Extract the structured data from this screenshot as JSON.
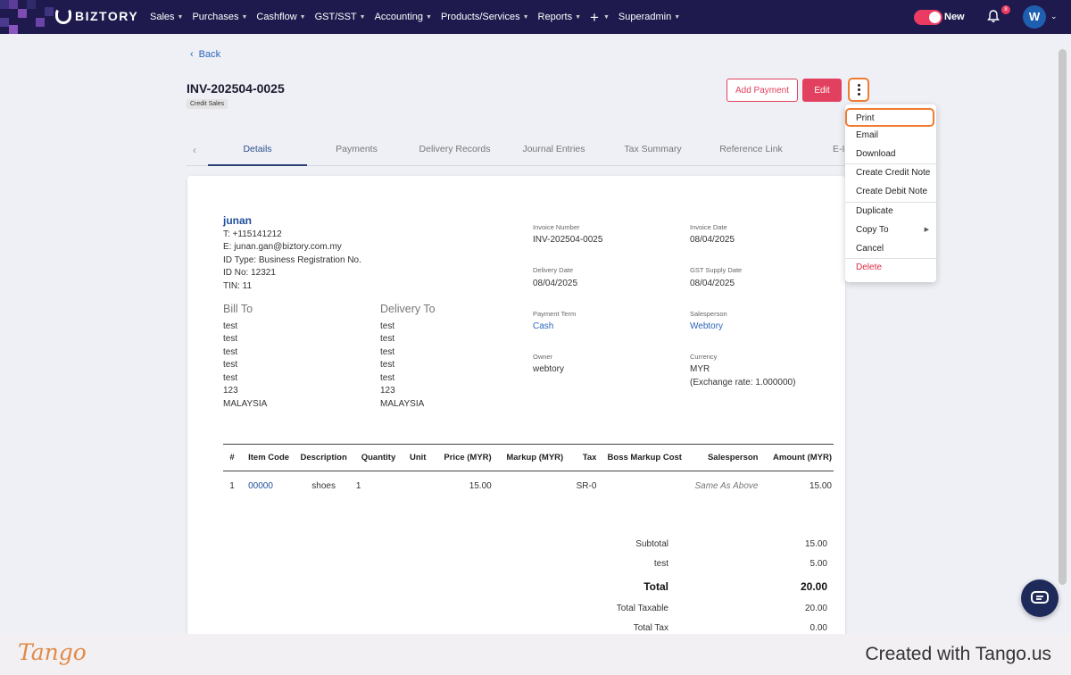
{
  "nav": {
    "logo_text": "BIZTORY",
    "menu": [
      "Sales",
      "Purchases",
      "Cashflow",
      "GST/SST",
      "Accounting",
      "Products/Services",
      "Reports"
    ],
    "plus_label": "+",
    "admin": "Superadmin",
    "toggle_label": "New",
    "notification_count": "8",
    "avatar_initial": "W"
  },
  "page": {
    "back_label": "Back",
    "title": "INV-202504-0025",
    "badge": "Credit Sales",
    "add_payment": "Add Payment",
    "edit": "Edit"
  },
  "tabs": [
    "Details",
    "Payments",
    "Delivery Records",
    "Journal Entries",
    "Tax Summary",
    "Reference Link",
    "E-In"
  ],
  "customer": {
    "name": "junan",
    "lines": [
      "T: +115141212",
      "E: junan.gan@biztory.com.my",
      "ID Type: Business Registration No.",
      "ID No: 12321",
      "TIN: 11"
    ]
  },
  "bill_to": {
    "heading": "Bill To",
    "lines": [
      "test",
      "test",
      "test",
      "test",
      "test",
      "123",
      "MALAYSIA"
    ]
  },
  "delivery_to": {
    "heading": "Delivery To",
    "lines": [
      "test",
      "test",
      "test",
      "test",
      "test",
      "123",
      "MALAYSIA"
    ]
  },
  "meta": {
    "invoice_number_label": "Invoice Number",
    "invoice_number": "INV-202504-0025",
    "invoice_date_label": "Invoice Date",
    "invoice_date": "08/04/2025",
    "delivery_date_label": "Delivery Date",
    "delivery_date": "08/04/2025",
    "gst_supply_date_label": "GST Supply Date",
    "gst_supply_date": "08/04/2025",
    "payment_term_label": "Payment Term",
    "payment_term": "Cash",
    "salesperson_label": "Salesperson",
    "salesperson": "Webtory",
    "owner_label": "Owner",
    "owner": "webtory",
    "currency_label": "Currency",
    "currency": "MYR",
    "exchange_rate": "(Exchange rate: 1.000000)"
  },
  "items": {
    "headers": [
      "#",
      "Item Code",
      "Description",
      "Quantity",
      "Unit",
      "Price (MYR)",
      "Markup (MYR)",
      "Tax",
      "Boss Markup Cost",
      "Salesperson",
      "Amount (MYR)"
    ],
    "rows": [
      {
        "no": "1",
        "code": "00000",
        "description": "shoes",
        "quantity": "1",
        "unit": "",
        "price": "15.00",
        "markup": "",
        "tax": "SR-0",
        "boss_markup": "",
        "salesperson": "Same As Above",
        "amount": "15.00"
      }
    ]
  },
  "summary": {
    "subtotal_label": "Subtotal",
    "subtotal": "15.00",
    "test_label": "test",
    "test_value": "5.00",
    "total_label": "Total",
    "total": "20.00",
    "total_taxable_label": "Total Taxable",
    "total_taxable": "20.00",
    "total_tax_label": "Total Tax",
    "total_tax": "0.00"
  },
  "menu": {
    "print": "Print",
    "email": "Email",
    "download": "Download",
    "create_credit_note": "Create Credit Note",
    "create_debit_note": "Create Debit Note",
    "duplicate": "Duplicate",
    "copy_to": "Copy To",
    "cancel": "Cancel",
    "delete": "Delete"
  },
  "footer": {
    "brand": "Tango",
    "created_with": "Created with Tango.us"
  },
  "colors": {
    "nav_bg": "#1e1a4d",
    "accent": "#e2405f",
    "highlight": "#f07c30",
    "link": "#2d64ba"
  }
}
